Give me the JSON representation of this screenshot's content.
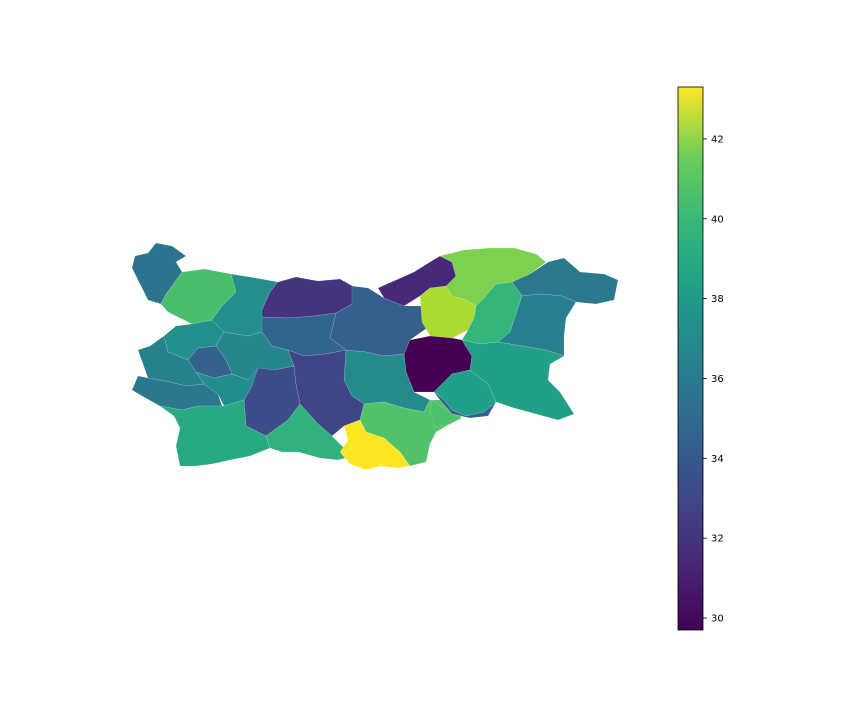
{
  "colormap": "viridis",
  "chart_data": {
    "type": "choropleth",
    "title": "",
    "value_range": [
      29.7,
      43.3
    ],
    "regions": [
      {
        "id": "r01",
        "value": 34.9
      },
      {
        "id": "r02",
        "value": 39.3
      },
      {
        "id": "r03",
        "value": 36.4
      },
      {
        "id": "r04",
        "value": 31.7
      },
      {
        "id": "r05",
        "value": 33.8
      },
      {
        "id": "r06",
        "value": 31.2
      },
      {
        "id": "r07",
        "value": 40.6
      },
      {
        "id": "r08",
        "value": 35.2
      },
      {
        "id": "r09",
        "value": 41.6
      },
      {
        "id": "r10",
        "value": 38.7
      },
      {
        "id": "r11",
        "value": 35.5
      },
      {
        "id": "r12",
        "value": 36.5
      },
      {
        "id": "r13",
        "value": 35.9
      },
      {
        "id": "r14",
        "value": 34.1
      },
      {
        "id": "r15",
        "value": 33.9
      },
      {
        "id": "r16",
        "value": 29.7
      },
      {
        "id": "r17",
        "value": 37.4
      },
      {
        "id": "r18",
        "value": 35.6
      },
      {
        "id": "r19",
        "value": 36.2
      },
      {
        "id": "r20",
        "value": 35.1
      },
      {
        "id": "r21",
        "value": 36.3
      },
      {
        "id": "r22",
        "value": 32.9
      },
      {
        "id": "r23",
        "value": 32.6
      },
      {
        "id": "r24",
        "value": 37.3
      },
      {
        "id": "r25",
        "value": 33.8
      },
      {
        "id": "r26",
        "value": 37.9
      },
      {
        "id": "r27",
        "value": 38.4
      },
      {
        "id": "r28",
        "value": 39.5
      },
      {
        "id": "r29",
        "value": 39.4
      },
      {
        "id": "r30",
        "value": 43.3
      }
    ],
    "colorbar": {
      "ticks": [
        30,
        32,
        34,
        36,
        38,
        40,
        42
      ],
      "tick_labels": [
        "30",
        "32",
        "34",
        "36",
        "38",
        "40",
        "42"
      ]
    }
  }
}
